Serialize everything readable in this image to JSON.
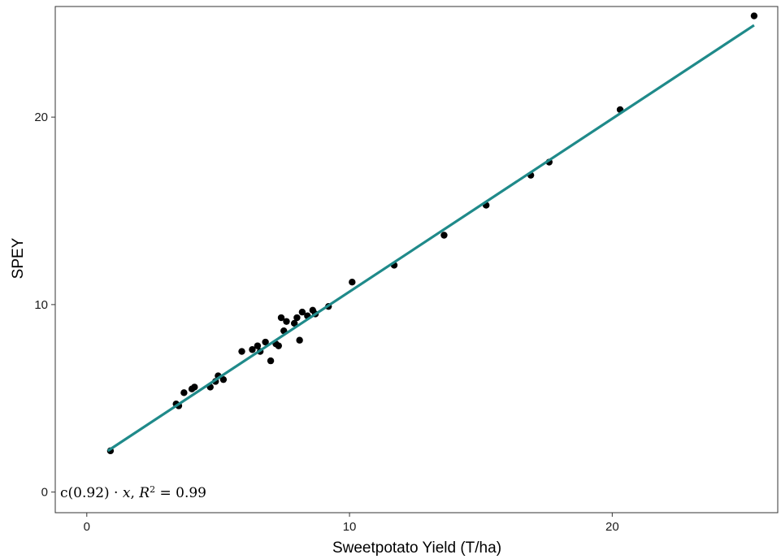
{
  "chart_data": {
    "type": "scatter",
    "xlabel": "Sweetpotato Yield (T/ha)",
    "ylabel": "SPEY",
    "xlim": [
      -1.2,
      26.3
    ],
    "ylim": [
      -1.1,
      25.9
    ],
    "xticks": [
      0,
      10,
      20
    ],
    "yticks": [
      0,
      10,
      20
    ],
    "grid": false,
    "points": [
      {
        "x": 0.9,
        "y": 2.2
      },
      {
        "x": 3.4,
        "y": 4.7
      },
      {
        "x": 3.5,
        "y": 4.6
      },
      {
        "x": 3.7,
        "y": 5.3
      },
      {
        "x": 4.0,
        "y": 5.5
      },
      {
        "x": 4.1,
        "y": 5.6
      },
      {
        "x": 4.7,
        "y": 5.6
      },
      {
        "x": 4.9,
        "y": 5.9
      },
      {
        "x": 5.0,
        "y": 6.2
      },
      {
        "x": 5.2,
        "y": 6.0
      },
      {
        "x": 5.9,
        "y": 7.5
      },
      {
        "x": 6.3,
        "y": 7.6
      },
      {
        "x": 6.5,
        "y": 7.8
      },
      {
        "x": 6.6,
        "y": 7.5
      },
      {
        "x": 6.8,
        "y": 8.0
      },
      {
        "x": 7.0,
        "y": 7.0
      },
      {
        "x": 7.2,
        "y": 7.9
      },
      {
        "x": 7.3,
        "y": 7.8
      },
      {
        "x": 7.4,
        "y": 9.3
      },
      {
        "x": 7.5,
        "y": 8.6
      },
      {
        "x": 7.6,
        "y": 9.1
      },
      {
        "x": 7.9,
        "y": 9.0
      },
      {
        "x": 8.0,
        "y": 9.3
      },
      {
        "x": 8.1,
        "y": 8.1
      },
      {
        "x": 8.2,
        "y": 9.6
      },
      {
        "x": 8.4,
        "y": 9.4
      },
      {
        "x": 8.6,
        "y": 9.7
      },
      {
        "x": 8.7,
        "y": 9.5
      },
      {
        "x": 9.2,
        "y": 9.9
      },
      {
        "x": 10.1,
        "y": 11.2
      },
      {
        "x": 11.7,
        "y": 12.1
      },
      {
        "x": 13.6,
        "y": 13.7
      },
      {
        "x": 15.2,
        "y": 15.3
      },
      {
        "x": 16.9,
        "y": 16.9
      },
      {
        "x": 17.6,
        "y": 17.6
      },
      {
        "x": 20.3,
        "y": 20.4
      },
      {
        "x": 25.4,
        "y": 25.4
      }
    ],
    "fit_line": {
      "x_start": 0.8,
      "x_end": 25.4,
      "y_start": 2.2,
      "y_end": 24.9,
      "color": "#1f8a8a"
    },
    "point_color": "#000000",
    "annotation": {
      "lead": "c(0.92) · ",
      "var": "x",
      "sep": ",  ",
      "r": "R",
      "sup": "2",
      "tail": " = 0.99"
    }
  }
}
